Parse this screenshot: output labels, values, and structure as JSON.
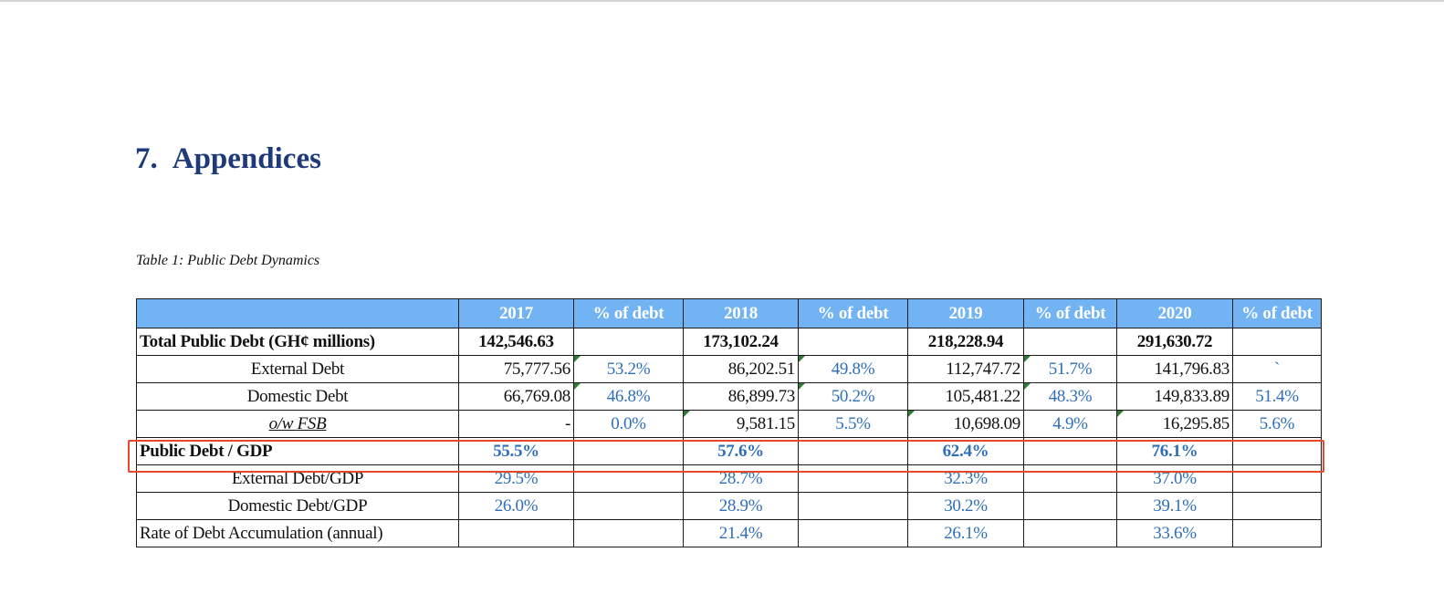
{
  "heading": {
    "number": "7.",
    "title": "Appendices"
  },
  "caption": "Table 1: Public Debt Dynamics",
  "colors": {
    "heading": "#1f3a7a",
    "header_fill": "#72b3f3",
    "percent_text": "#2f6fb8",
    "highlight": "#e8472b",
    "cell_marker": "#2e7d32"
  },
  "table": {
    "headers": [
      "",
      "2017",
      "% of debt",
      "2018",
      "% of debt",
      "2019",
      "% of debt",
      "2020",
      "% of debt"
    ],
    "rows": [
      {
        "label": "Total Public Debt (GH¢ millions)",
        "cells": [
          "142,546.63",
          "",
          "173,102.24",
          "",
          "218,228.94",
          "",
          "291,630.72",
          ""
        ]
      },
      {
        "label": "External Debt",
        "cells": [
          "75,777.56",
          "53.2%",
          "86,202.51",
          "49.8%",
          "112,747.72",
          "51.7%",
          "141,796.83",
          "`"
        ]
      },
      {
        "label": "Domestic Debt",
        "cells": [
          "66,769.08",
          "46.8%",
          "86,899.73",
          "50.2%",
          "105,481.22",
          "48.3%",
          "149,833.89",
          "51.4%"
        ]
      },
      {
        "label": "o/w FSB",
        "cells": [
          "-",
          "0.0%",
          "9,581.15",
          "5.5%",
          "10,698.09",
          "4.9%",
          "16,295.85",
          "5.6%"
        ]
      },
      {
        "label": "Public Debt / GDP",
        "cells": [
          "55.5%",
          "",
          "57.6%",
          "",
          "62.4%",
          "",
          "76.1%",
          ""
        ]
      },
      {
        "label": "External Debt/GDP",
        "cells": [
          "29.5%",
          "",
          "28.7%",
          "",
          "32.3%",
          "",
          "37.0%",
          ""
        ]
      },
      {
        "label": "Domestic Debt/GDP",
        "cells": [
          "26.0%",
          "",
          "28.9%",
          "",
          "30.2%",
          "",
          "39.1%",
          ""
        ]
      },
      {
        "label": "Rate of Debt Accumulation (annual)",
        "cells": [
          "",
          "",
          "21.4%",
          "",
          "26.1%",
          "",
          "33.6%",
          ""
        ]
      }
    ]
  }
}
